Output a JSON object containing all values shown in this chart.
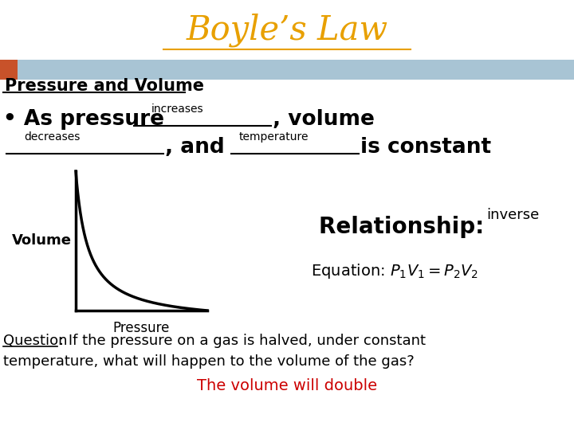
{
  "title": "Boyle’s Law",
  "title_color": "#E8A000",
  "bg_color": "#ffffff",
  "header_bar_color": "#a8c4d4",
  "header_bar_orange": "#c8522a",
  "section_title": "Pressure and Volume",
  "relationship_label": "Relationship: ",
  "relationship_word": "inverse",
  "pressure_label": "Pressure",
  "volume_label": "Volume",
  "answer_color": "#cc0000",
  "answer_text": "The volume will double"
}
